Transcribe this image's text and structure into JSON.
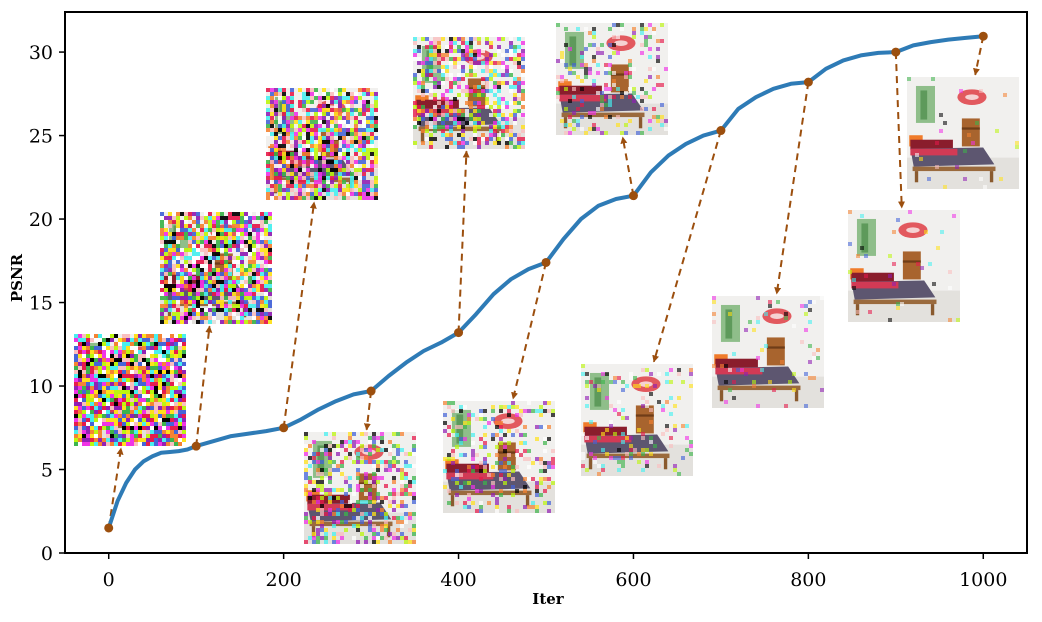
{
  "chart_data": {
    "type": "line",
    "title": "",
    "xlabel": "Iter",
    "ylabel": "PSNR",
    "xlim": [
      -50,
      1050
    ],
    "ylim": [
      0,
      32.4
    ],
    "x_ticks": [
      0,
      200,
      400,
      600,
      800,
      1000
    ],
    "y_ticks": [
      0,
      5,
      10,
      15,
      20,
      25,
      30
    ],
    "grid": false,
    "colors": {
      "line": "#2e7bb6",
      "marker": "#9c4f0e",
      "arrow": "#9c4f0e",
      "axis": "#000000"
    },
    "series": [
      {
        "x": [
          0,
          10,
          20,
          30,
          40,
          50,
          60,
          70,
          80,
          90,
          100,
          120,
          140,
          160,
          180,
          200,
          220,
          240,
          260,
          280,
          300,
          320,
          340,
          360,
          380,
          400,
          420,
          440,
          460,
          480,
          500,
          520,
          540,
          560,
          580,
          600,
          620,
          640,
          660,
          680,
          700,
          720,
          740,
          760,
          780,
          800,
          820,
          840,
          860,
          880,
          900,
          920,
          940,
          960,
          980,
          1000
        ],
        "y": [
          1.5,
          3.1,
          4.2,
          5.0,
          5.5,
          5.8,
          6.0,
          6.05,
          6.1,
          6.2,
          6.4,
          6.7,
          7.0,
          7.15,
          7.3,
          7.5,
          8.0,
          8.6,
          9.1,
          9.5,
          9.7,
          10.6,
          11.4,
          12.1,
          12.6,
          13.2,
          14.3,
          15.5,
          16.4,
          17.0,
          17.4,
          18.8,
          20.0,
          20.8,
          21.2,
          21.4,
          22.8,
          23.8,
          24.5,
          25.0,
          25.3,
          26.6,
          27.3,
          27.8,
          28.1,
          28.2,
          29.0,
          29.5,
          29.8,
          29.95,
          30.0,
          30.4,
          30.6,
          30.75,
          30.85,
          30.95
        ]
      }
    ],
    "snapshots": [
      {
        "iter": 0,
        "psnr": 1.5,
        "noise_level": 0.97
      },
      {
        "iter": 100,
        "psnr": 6.4,
        "noise_level": 0.85
      },
      {
        "iter": 200,
        "psnr": 7.5,
        "noise_level": 0.75
      },
      {
        "iter": 300,
        "psnr": 9.7,
        "noise_level": 0.45
      },
      {
        "iter": 400,
        "psnr": 13.2,
        "noise_level": 0.55
      },
      {
        "iter": 500,
        "psnr": 17.4,
        "noise_level": 0.35
      },
      {
        "iter": 600,
        "psnr": 21.4,
        "noise_level": 0.25
      },
      {
        "iter": 700,
        "psnr": 25.3,
        "noise_level": 0.18
      },
      {
        "iter": 800,
        "psnr": 28.2,
        "noise_level": 0.08
      },
      {
        "iter": 900,
        "psnr": 30.0,
        "noise_level": 0.05
      },
      {
        "iter": 1000,
        "psnr": 30.95,
        "noise_level": 0.03
      }
    ]
  }
}
